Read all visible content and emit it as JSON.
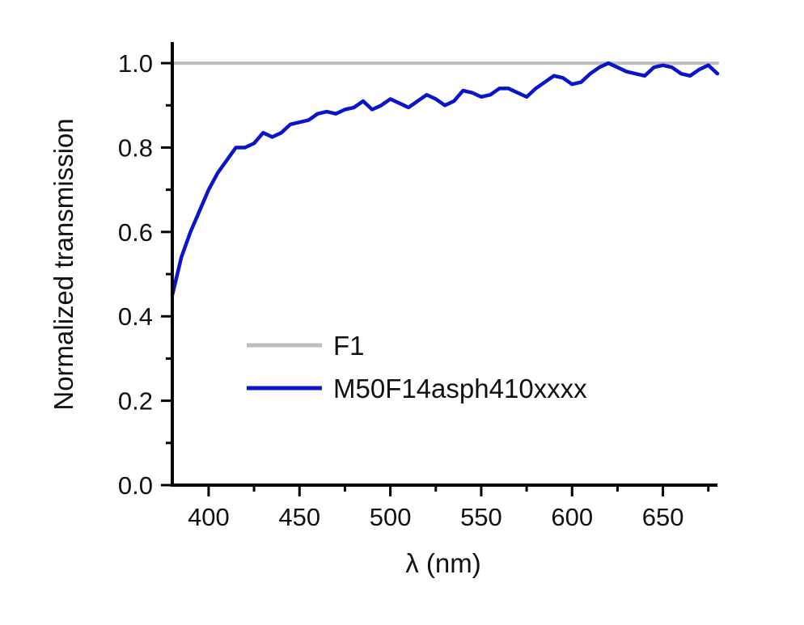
{
  "chart_data": {
    "type": "line",
    "xlabel": "λ (nm)",
    "ylabel": "Normalized transmission",
    "xlim": [
      380,
      680
    ],
    "ylim": [
      0.0,
      1.05
    ],
    "x_ticks": [
      400,
      450,
      500,
      550,
      600,
      650
    ],
    "x_tick_labels": [
      "400",
      "450",
      "500",
      "550",
      "600",
      "650"
    ],
    "y_ticks": [
      0.0,
      0.2,
      0.4,
      0.6,
      0.8,
      1.0
    ],
    "y_tick_labels": [
      "0.0",
      "0.2",
      "0.4",
      "0.6",
      "0.8",
      "1.0"
    ],
    "grid": false,
    "legend_position": "bottom-left",
    "series": [
      {
        "name": "F1",
        "color": "#bdbdbd",
        "x": [
          380,
          680
        ],
        "y": [
          1.0,
          1.0
        ]
      },
      {
        "name": "M50F14asph410xxxx",
        "color": "#0a14c8",
        "x": [
          380,
          385,
          390,
          395,
          400,
          405,
          410,
          415,
          420,
          425,
          430,
          435,
          440,
          445,
          450,
          455,
          460,
          465,
          470,
          475,
          480,
          485,
          490,
          495,
          500,
          505,
          510,
          515,
          520,
          525,
          530,
          535,
          540,
          545,
          550,
          555,
          560,
          565,
          570,
          575,
          580,
          585,
          590,
          595,
          600,
          605,
          610,
          615,
          620,
          625,
          630,
          635,
          640,
          645,
          650,
          655,
          660,
          665,
          670,
          675,
          680
        ],
        "y": [
          0.45,
          0.54,
          0.6,
          0.65,
          0.7,
          0.74,
          0.77,
          0.8,
          0.8,
          0.81,
          0.835,
          0.825,
          0.835,
          0.855,
          0.86,
          0.865,
          0.88,
          0.885,
          0.88,
          0.89,
          0.895,
          0.91,
          0.89,
          0.9,
          0.915,
          0.905,
          0.895,
          0.91,
          0.925,
          0.915,
          0.9,
          0.91,
          0.935,
          0.93,
          0.92,
          0.925,
          0.94,
          0.94,
          0.93,
          0.92,
          0.94,
          0.955,
          0.97,
          0.965,
          0.95,
          0.955,
          0.975,
          0.99,
          1.0,
          0.99,
          0.98,
          0.975,
          0.97,
          0.99,
          0.995,
          0.99,
          0.975,
          0.97,
          0.985,
          0.995,
          0.975
        ]
      }
    ]
  }
}
